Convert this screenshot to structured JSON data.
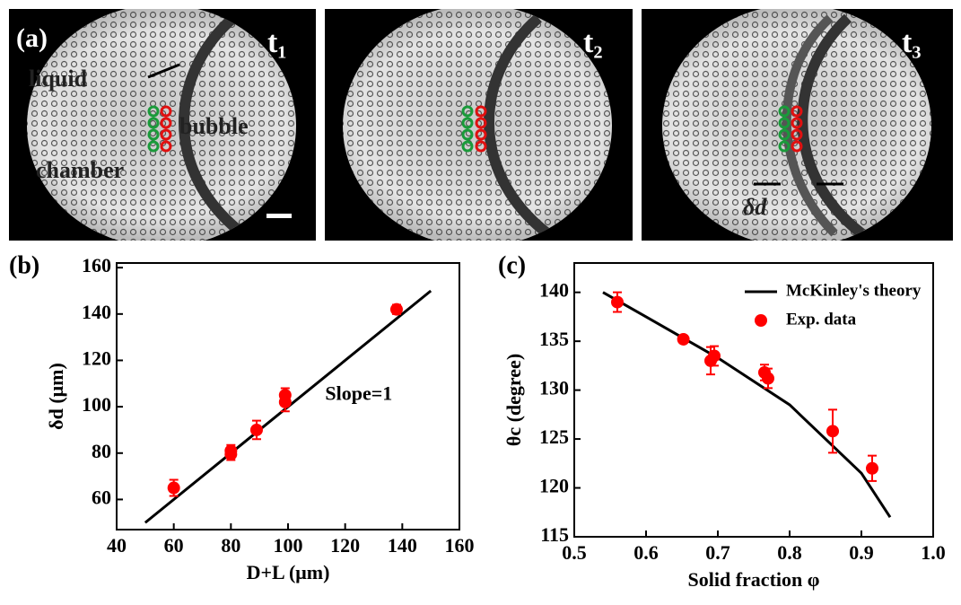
{
  "panel_a": {
    "label": "(a)",
    "frames": [
      "t₁",
      "t₂",
      "t₃"
    ],
    "annotations": [
      "liquid",
      "bubble",
      "chamber",
      "δd"
    ]
  },
  "chart_data": [
    {
      "type": "scatter",
      "panel_label": "(b)",
      "x_label": "D+L (μm)",
      "y_label": "δd (μm)",
      "annotation": "Slope=1",
      "xlim": [
        40,
        160
      ],
      "xticks": [
        40,
        60,
        80,
        100,
        120,
        140,
        160
      ],
      "ylim": [
        47,
        162
      ],
      "yticks": [
        60,
        80,
        100,
        120,
        140,
        160
      ],
      "series": [
        {
          "type": "line",
          "color": "#000000",
          "x": [
            50,
            150
          ],
          "values": [
            50,
            150
          ]
        },
        {
          "type": "points",
          "color": "#ff0000",
          "x": [
            60,
            80,
            80,
            89,
            99,
            99,
            138
          ],
          "values": [
            65,
            79.5,
            81,
            90,
            102,
            105,
            142
          ],
          "errors": [
            3.5,
            2.5,
            2.5,
            4,
            4,
            3,
            2
          ]
        }
      ]
    },
    {
      "type": "scatter",
      "panel_label": "(c)",
      "x_label": "Solid fraction φ",
      "y_label": "θc (degree)",
      "legend": "upper right",
      "xlim": [
        0.5,
        1.0
      ],
      "xticks": [
        0.5,
        0.6,
        0.7,
        0.8,
        0.9,
        {
          "value": 1,
          "label": "1.0"
        }
      ],
      "ylim": [
        115,
        143
      ],
      "yticks": [
        115,
        120,
        125,
        130,
        135,
        140
      ],
      "series": [
        {
          "name": "McKinley's theory",
          "type": "line",
          "color": "#000000",
          "x": [
            0.54,
            0.6,
            0.7,
            0.8,
            0.9,
            0.94
          ],
          "values": [
            140,
            137.5,
            133.3,
            128.5,
            121.5,
            117
          ]
        },
        {
          "name": "Exp. data",
          "type": "points",
          "color": "#ff0000",
          "x": [
            0.56,
            0.652,
            0.69,
            0.695,
            0.765,
            0.77,
            0.86,
            0.915
          ],
          "values": [
            139,
            135.2,
            133,
            133.5,
            131.8,
            131.2,
            125.8,
            122
          ],
          "errors": [
            1,
            0.3,
            1.4,
            1,
            0.8,
            1,
            2.2,
            1.3
          ]
        }
      ]
    }
  ]
}
